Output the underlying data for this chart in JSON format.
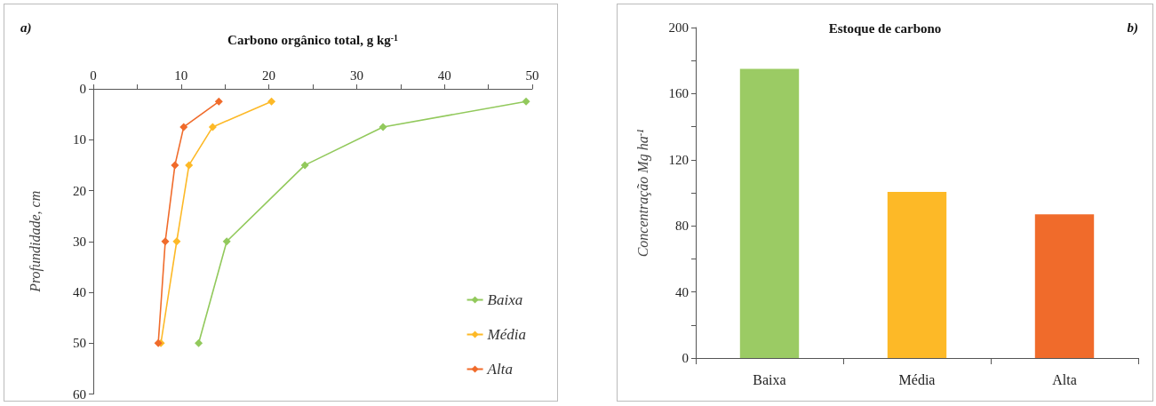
{
  "chart_data": [
    {
      "type": "line",
      "xlabel": "Carbono orgânico total, g kg$^{-1}$",
      "ylabel": "Profundidade, cm",
      "annotations": [
        "a)"
      ],
      "series": [
        {
          "name": "Baixa",
          "color": "#92c95c",
          "x": [
            49.3,
            33.0,
            24.1,
            15.2,
            12.0
          ],
          "values": [
            2.5,
            7.5,
            15,
            30,
            50
          ]
        },
        {
          "name": "Média",
          "color": "#fdb927",
          "x": [
            20.3,
            13.6,
            10.9,
            9.5,
            7.7
          ],
          "values": [
            2.5,
            7.5,
            15,
            30,
            50
          ]
        },
        {
          "name": "Alta",
          "color": "#f06b2b",
          "x": [
            14.3,
            10.3,
            9.3,
            8.2,
            7.4
          ],
          "values": [
            2.5,
            7.5,
            15,
            30,
            50
          ]
        }
      ],
      "xlim": [
        0,
        50
      ],
      "xticks": [
        0,
        {
          "value": 5,
          "label": null
        },
        10,
        {
          "value": 15,
          "label": null
        },
        20,
        {
          "value": 25,
          "label": null
        },
        30,
        {
          "value": 35,
          "label": null
        },
        40,
        {
          "value": 45,
          "label": null
        },
        50
      ],
      "ylim": [
        60,
        0
      ],
      "yticks": [
        0,
        10,
        20,
        30,
        40,
        50,
        60
      ],
      "marker": "diamond",
      "line_style": "solid",
      "grid": false,
      "legend": "bottom right"
    },
    {
      "type": "bar",
      "title": "Estoque de carbono",
      "ylabel": "Concentração Mg ha$^{-1}$",
      "annotations": [
        "b)"
      ],
      "categories": [
        "Baixa",
        "Média",
        "Alta"
      ],
      "values": [
        175,
        100.5,
        87
      ],
      "colors": [
        "#9bcb64",
        "#fdb927",
        "#f06b2b"
      ],
      "ylim": [
        0,
        200
      ],
      "yticks": [
        0,
        {
          "value": 20,
          "label": null
        },
        40,
        {
          "value": 60,
          "label": null
        },
        80,
        {
          "value": 100,
          "label": null
        },
        120,
        {
          "value": 140,
          "label": null
        },
        160,
        {
          "value": 180,
          "label": null
        },
        200
      ],
      "grid": false,
      "legend": false
    }
  ]
}
